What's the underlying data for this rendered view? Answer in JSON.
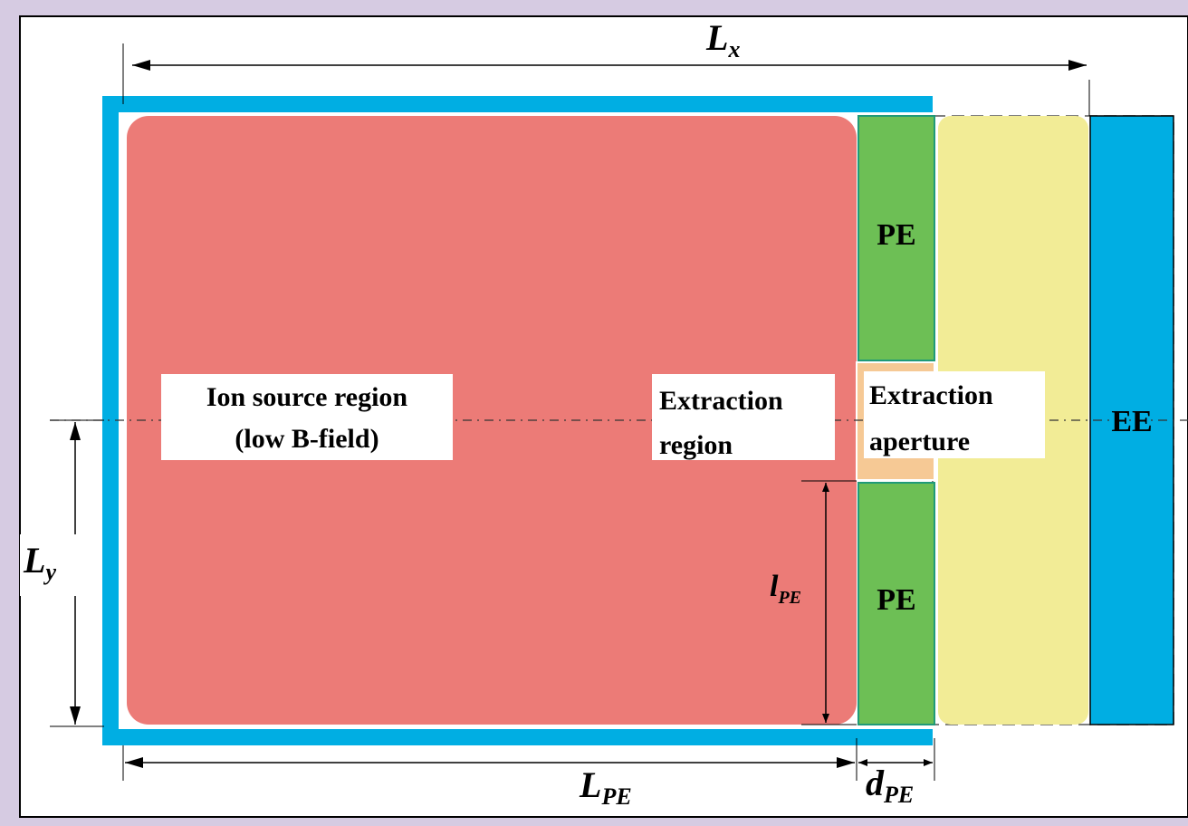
{
  "colors": {
    "frame_background": "#d6cbe2",
    "canvas_background": "#ffffff",
    "ion_source_region": "#ec7b77",
    "pe_electrode": "#6dbf55",
    "extraction_aperture": "#f6c995",
    "yellow_gap": "#f2ec96",
    "ee_electrode": "#00aee3",
    "enclosure_border": "#00aee3"
  },
  "labels": {
    "ion_source_line1": "Ion source region",
    "ion_source_line2": "(low B-field)",
    "extraction_region_line1": "Extraction",
    "extraction_region_line2": "region",
    "extraction_aperture_line1": "Extraction",
    "extraction_aperture_line2": "aperture",
    "pe_top": "PE",
    "pe_bottom": "PE",
    "ee": "EE"
  },
  "dimensions": {
    "Lx": {
      "main": "L",
      "sub": "x"
    },
    "Ly": {
      "main": "L",
      "sub": "y"
    },
    "LPE": {
      "main": "L",
      "sub": "PE"
    },
    "dPE": {
      "main": "d",
      "sub": "PE"
    },
    "lPE": {
      "main": "l",
      "sub": "PE"
    }
  }
}
